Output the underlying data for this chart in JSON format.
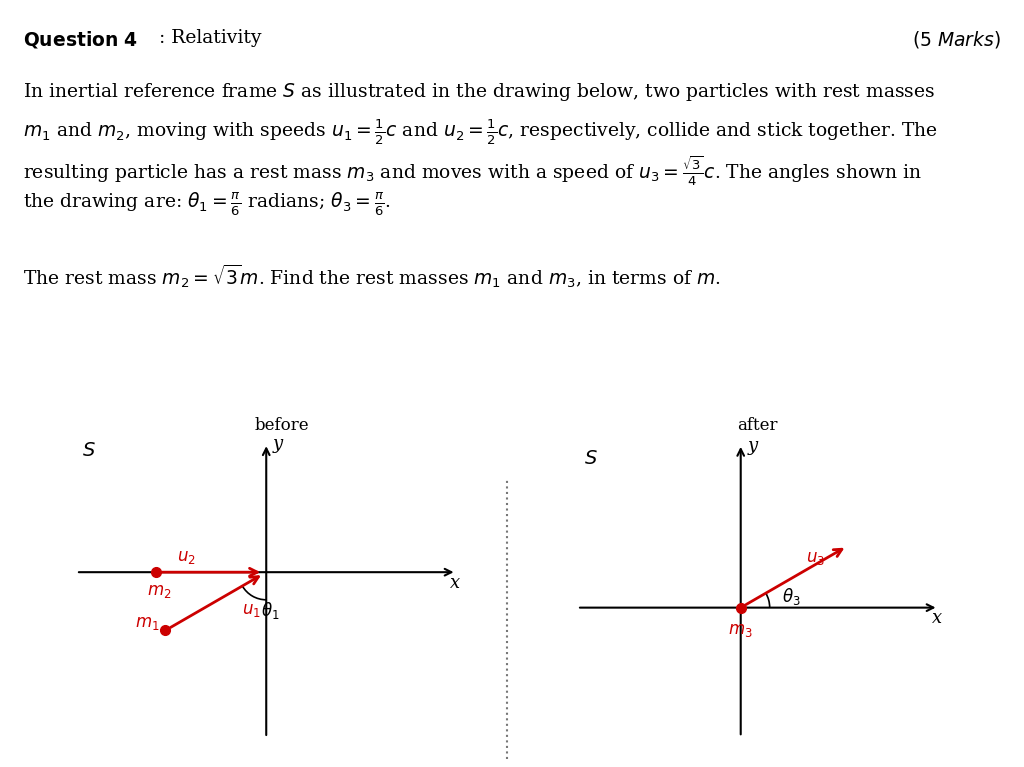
{
  "red_color": "#cc0000",
  "title_bold": "Question 4",
  "title_normal": ": Relativity",
  "title_italic": "(5 Marks)",
  "text_lines": [
    "In inertial reference frame $S$ as illustrated in the drawing below, two particles with rest masses",
    "$m_1$ and $m_2$, moving with speeds $u_1 = \\frac{1}{2}c$ and $u_2 = \\frac{1}{2}c$, respectively, collide and stick together. The",
    "resulting particle has a rest mass $m_3$ and moves with a speed of $u_3 = \\frac{\\sqrt{3}}{4}c$. The angles shown in",
    "the drawing are: $\\theta_1 = \\frac{\\pi}{6}$ radians; $\\theta_3 = \\frac{\\pi}{6}$."
  ],
  "text_line2": "The rest mass $m_2 = \\sqrt{3}m$. Find the rest masses $m_1$ and $m_3$, in terms of $m$.",
  "label_before": "before",
  "label_after": "after",
  "fontsize_body": 13.5,
  "fontsize_title": 13.5,
  "fontsize_diagram": 12,
  "fontsize_label": 12
}
